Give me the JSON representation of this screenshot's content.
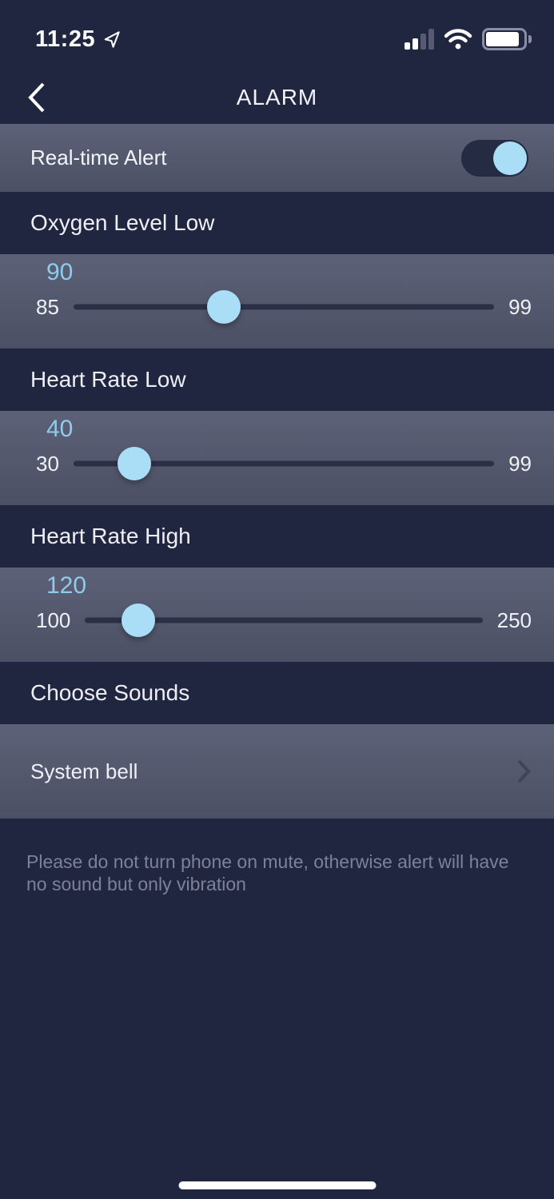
{
  "status_bar": {
    "time": "11:25",
    "signal_bars_filled": 2,
    "signal_bars_total": 4,
    "wifi_strength": "full",
    "battery_fill_ratio": 0.9
  },
  "header": {
    "title": "ALARM"
  },
  "toggle_row": {
    "label": "Real-time Alert",
    "enabled": true
  },
  "sliders": [
    {
      "title": "Oxygen Level Low",
      "value": 90,
      "min": 85,
      "max": 99
    },
    {
      "title": "Heart Rate Low",
      "value": 40,
      "min": 30,
      "max": 99
    },
    {
      "title": "Heart Rate High",
      "value": 120,
      "min": 100,
      "max": 250
    }
  ],
  "sounds": {
    "section_title": "Choose Sounds",
    "selected_sound": "System bell"
  },
  "footer_note": "Please do not turn phone on mute, otherwise alert will have no sound but only vibration",
  "colors": {
    "background": "#212640",
    "row_top": "#5c6177",
    "row_bottom": "#4b5065",
    "slider_track": "#2b3047",
    "toggle_track": "#252b43",
    "accent_blue": "#a9def6",
    "value_blue": "#8fccec",
    "muted_text": "#7d8197"
  }
}
